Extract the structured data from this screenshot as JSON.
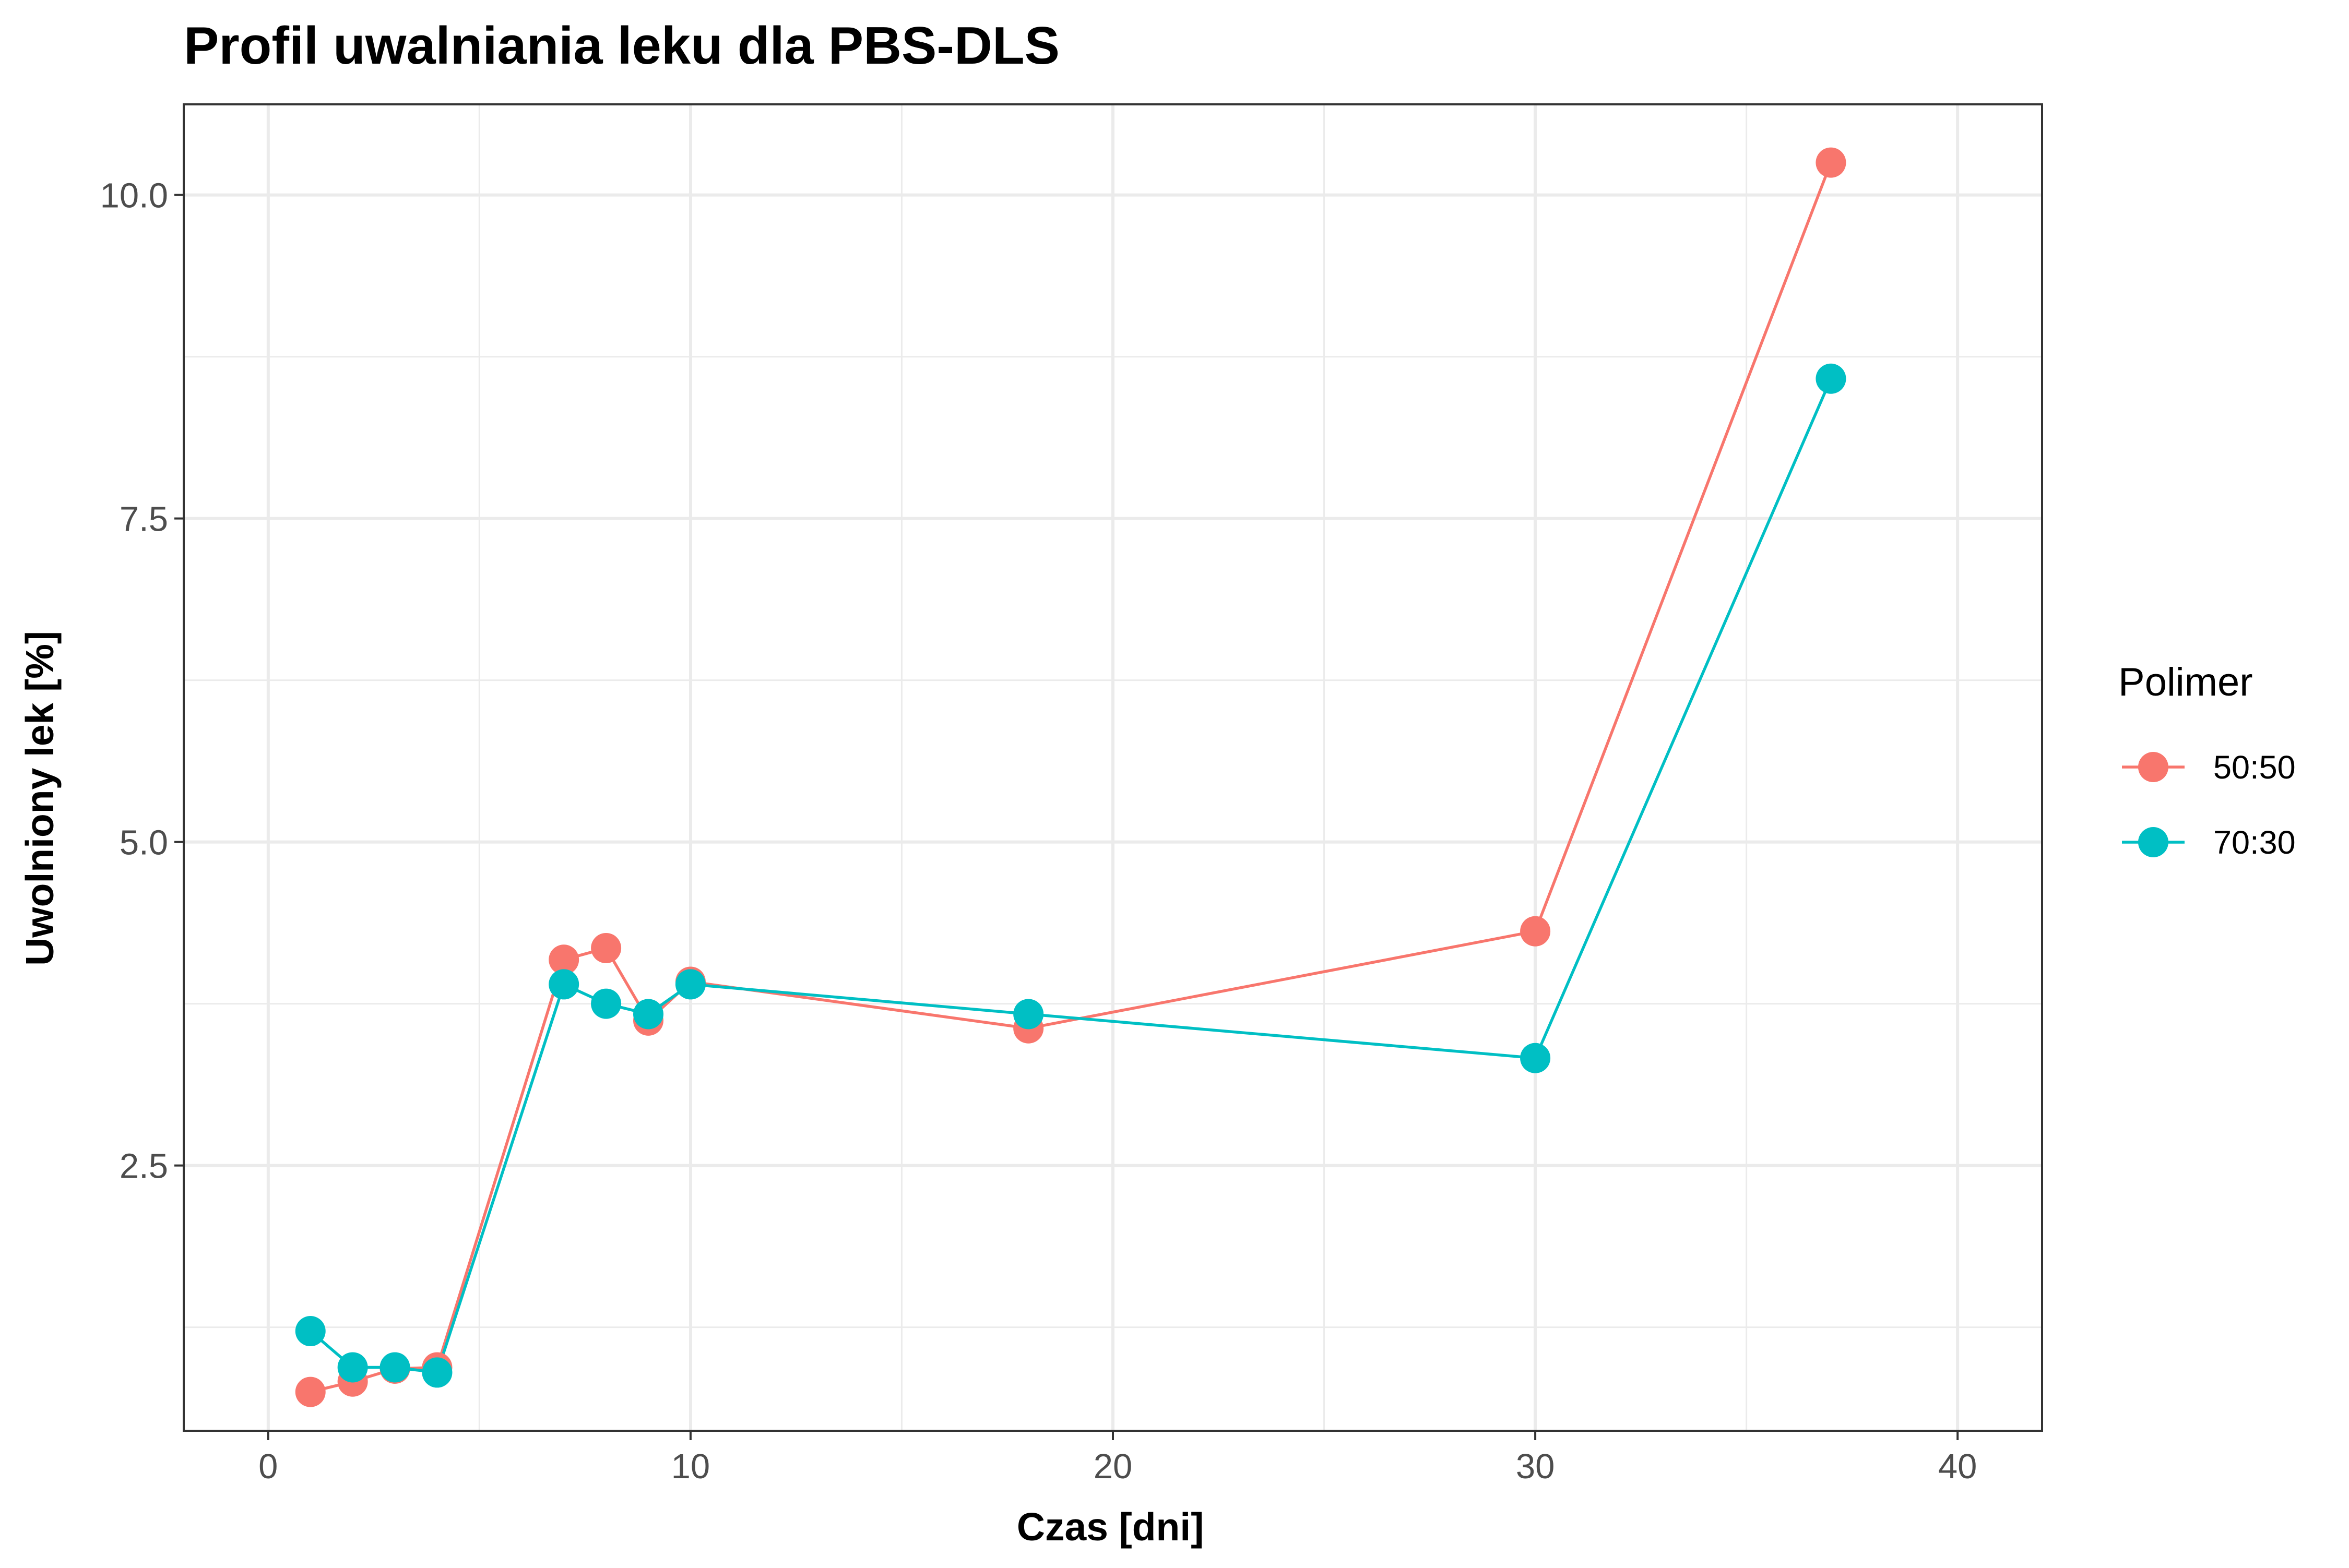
{
  "chart_data": {
    "type": "line",
    "title": "Profil uwalniania leku dla PBS-DLS",
    "xlabel": "Czas [dni]",
    "ylabel": "Uwolniony lek [%]",
    "xlim": [
      -2,
      42
    ],
    "ylim": [
      0.45,
      10.7
    ],
    "x_ticks": [
      0,
      10,
      20,
      30,
      40
    ],
    "x_tick_labels": [
      "0",
      "10",
      "20",
      "30",
      "40"
    ],
    "x_minor": [
      5,
      15,
      25,
      35
    ],
    "y_ticks": [
      2.5,
      5.0,
      7.5,
      10.0
    ],
    "y_tick_labels": [
      "2.5",
      "5.0",
      "7.5",
      "10.0"
    ],
    "y_minor": [
      1.25,
      3.75,
      6.25,
      8.75
    ],
    "grid": true,
    "legend": {
      "title": "Polimer",
      "position": "right"
    },
    "series": [
      {
        "name": "50:50",
        "color": "#F8766D",
        "x": [
          1,
          2,
          3,
          4,
          7,
          8,
          9,
          10,
          18,
          30,
          37
        ],
        "y": [
          0.75,
          0.83,
          0.93,
          0.94,
          4.09,
          4.18,
          3.62,
          3.92,
          3.56,
          4.31,
          10.25
        ]
      },
      {
        "name": "70:30",
        "color": "#00BFC4",
        "x": [
          1,
          2,
          3,
          4,
          7,
          8,
          9,
          10,
          18,
          30,
          37
        ],
        "y": [
          1.22,
          0.94,
          0.94,
          0.9,
          3.9,
          3.75,
          3.67,
          3.9,
          3.67,
          3.33,
          8.58
        ]
      }
    ]
  }
}
